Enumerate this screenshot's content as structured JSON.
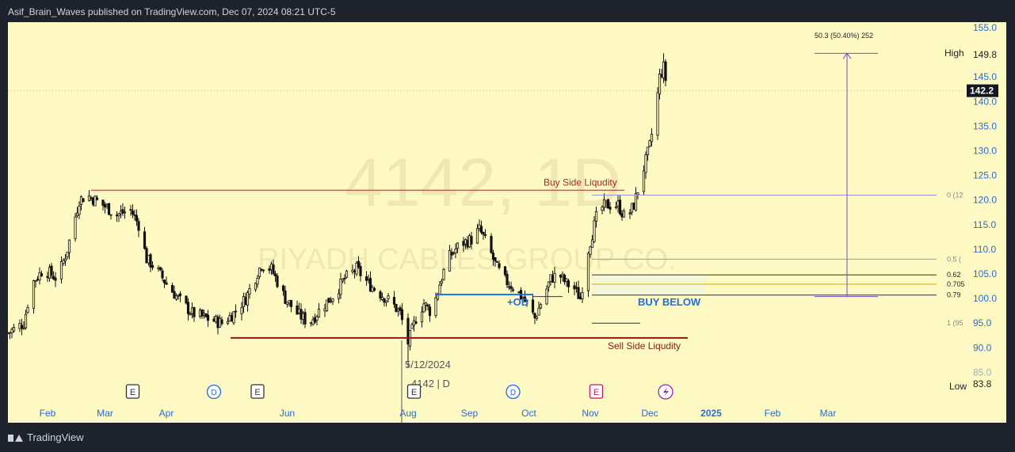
{
  "header": {
    "publisher": "Asif_Brain_Waves published on TradingView.com, Dec 07, 2024 08:21 UTC-5"
  },
  "footer": {
    "brand": "TradingView"
  },
  "colors": {
    "background": "#fff9c4",
    "candle": "#111111",
    "liquidity_line": "#a52a2a",
    "ob_line": "#1f6fe0",
    "measure": "#7b4dbf",
    "fib_line": "#333333",
    "fib_light": "#9b8fd6",
    "fib_gold": "#e0a800",
    "axis_text": "#2a6bd1"
  },
  "watermark": {
    "title": "4142, 1D",
    "subtitle": "RIYADH CABLES GROUP CO."
  },
  "annotations": {
    "buy_side": "Buy Side Liqudity",
    "sell_side": "Sell Side Liqudity",
    "ob": "+OB",
    "buy_below": "BUY BELOW",
    "measure": "50.3 (50.40%) 252",
    "date_label": "5/12/2024",
    "symbol_label": "4142 | D"
  },
  "fib_labels": [
    {
      "label": "0 (12",
      "price": 121
    },
    {
      "label": "0.5 (",
      "price": 108
    },
    {
      "label": "0.62",
      "price": 104.8
    },
    {
      "label": "0.705",
      "price": 102.9
    },
    {
      "label": "0.79",
      "price": 100.7
    },
    {
      "label": "1 (95",
      "price": 95
    }
  ],
  "price_axis": {
    "ticks": [
      "155.0",
      "145.0",
      "140.0",
      "135.0",
      "130.0",
      "125.0",
      "120.0",
      "115.0",
      "110.0",
      "105.0",
      "100.0",
      "95.0",
      "90.0",
      "85.0"
    ],
    "tick_values": [
      155,
      145,
      140,
      135,
      130,
      125,
      120,
      115,
      110,
      105,
      100,
      95,
      90,
      85
    ],
    "high_label": "High",
    "high_value": "149.8",
    "current_value": "142.2",
    "low_label": "Low",
    "low_value": "83.8"
  },
  "time_axis": [
    {
      "label": "Feb",
      "day": 20
    },
    {
      "label": "Mar",
      "day": 49
    },
    {
      "label": "Apr",
      "day": 80
    },
    {
      "label": "Jun",
      "day": 141
    },
    {
      "label": "Aug",
      "day": 202
    },
    {
      "label": "Sep",
      "day": 233
    },
    {
      "label": "Oct",
      "day": 263
    },
    {
      "label": "Nov",
      "day": 294
    },
    {
      "label": "Dec",
      "day": 324
    },
    {
      "label": "2025",
      "day": 355
    },
    {
      "label": "Feb",
      "day": 386
    },
    {
      "label": "Mar",
      "day": 414
    }
  ],
  "events": [
    {
      "type": "E",
      "day": 63
    },
    {
      "type": "D",
      "day": 104
    },
    {
      "type": "E",
      "day": 126
    },
    {
      "type": "E",
      "day": 205
    },
    {
      "type": "D",
      "day": 255
    },
    {
      "type": "E",
      "day": 297
    },
    {
      "type": "S",
      "day": 332
    }
  ],
  "chart_data": {
    "type": "candlestick",
    "symbol": "4142",
    "interval": "1D",
    "ylim": [
      83.8,
      156
    ],
    "key_levels": {
      "high": 149.8,
      "current": 142.2,
      "low": 83.8,
      "buy_side_liquidity": 122,
      "sell_side_liquidity": 92,
      "order_block": 100.8
    },
    "path_points": [
      [
        0,
        93
      ],
      [
        8,
        95
      ],
      [
        12,
        103
      ],
      [
        18,
        106
      ],
      [
        25,
        104
      ],
      [
        30,
        110
      ],
      [
        36,
        120
      ],
      [
        40,
        121
      ],
      [
        48,
        119
      ],
      [
        55,
        117
      ],
      [
        62,
        118
      ],
      [
        66,
        115
      ],
      [
        70,
        108
      ],
      [
        75,
        106
      ],
      [
        80,
        103
      ],
      [
        86,
        100
      ],
      [
        93,
        97
      ],
      [
        100,
        96
      ],
      [
        108,
        95
      ],
      [
        114,
        97
      ],
      [
        120,
        100
      ],
      [
        128,
        107
      ],
      [
        133,
        106
      ],
      [
        140,
        100
      ],
      [
        146,
        97
      ],
      [
        152,
        95
      ],
      [
        158,
        98
      ],
      [
        165,
        101
      ],
      [
        170,
        104
      ],
      [
        176,
        106
      ],
      [
        182,
        103
      ],
      [
        188,
        101
      ],
      [
        194,
        99
      ],
      [
        198,
        97
      ],
      [
        202,
        91
      ],
      [
        206,
        96
      ],
      [
        210,
        99
      ],
      [
        214,
        97
      ],
      [
        218,
        103
      ],
      [
        222,
        108
      ],
      [
        228,
        111
      ],
      [
        234,
        112
      ],
      [
        238,
        114
      ],
      [
        242,
        111
      ],
      [
        246,
        107
      ],
      [
        250,
        104
      ],
      [
        256,
        102
      ],
      [
        262,
        99
      ],
      [
        266,
        96
      ],
      [
        270,
        100
      ],
      [
        274,
        104
      ],
      [
        278,
        105
      ],
      [
        282,
        103
      ],
      [
        286,
        102
      ],
      [
        289,
        100
      ],
      [
        293,
        110
      ],
      [
        298,
        118
      ],
      [
        302,
        119
      ],
      [
        308,
        119
      ],
      [
        312,
        116
      ],
      [
        316,
        119
      ],
      [
        320,
        125
      ],
      [
        324,
        131
      ],
      [
        327,
        138
      ],
      [
        329,
        145
      ],
      [
        331,
        147
      ],
      [
        333,
        142
      ]
    ]
  }
}
